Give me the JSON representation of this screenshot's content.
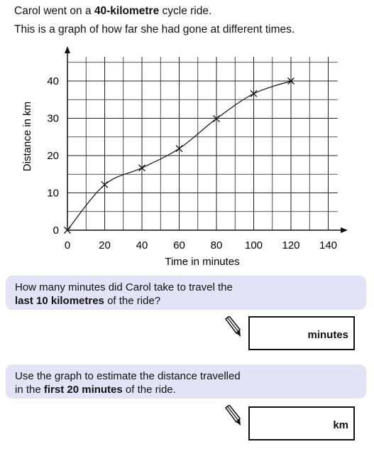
{
  "intro": {
    "line1_pre": "Carol went on a ",
    "line1_bold": "40-kilometre",
    "line1_post": " cycle ride.",
    "line2": "This is a graph of how far she had gone at different times."
  },
  "chart_data": {
    "type": "line",
    "xlabel": "Time in minutes",
    "ylabel": "Distance in km",
    "x_ticks": [
      "0",
      "20",
      "40",
      "60",
      "80",
      "100",
      "120",
      "140"
    ],
    "y_ticks": [
      "0",
      "10",
      "20",
      "30",
      "40"
    ],
    "xlim": [
      0,
      140
    ],
    "ylim": [
      0,
      40
    ],
    "grid": true,
    "x": [
      0,
      20,
      40,
      60,
      80,
      100,
      120
    ],
    "y": [
      0,
      12.2,
      16.7,
      21.9,
      29.9,
      36.6,
      40
    ],
    "marker": "x"
  },
  "questions": [
    {
      "line1": "How many minutes did Carol take to travel the",
      "line2_bold": "last 10 kilometres",
      "line2_post": " of the ride?",
      "unit": "minutes"
    },
    {
      "line1": "Use the graph to estimate the distance travelled",
      "line2_pre": "in the ",
      "line2_bold": "first 20 minutes",
      "line2_post": " of the ride.",
      "unit": "km"
    }
  ],
  "icons": {
    "answer": "pencil-icon"
  }
}
